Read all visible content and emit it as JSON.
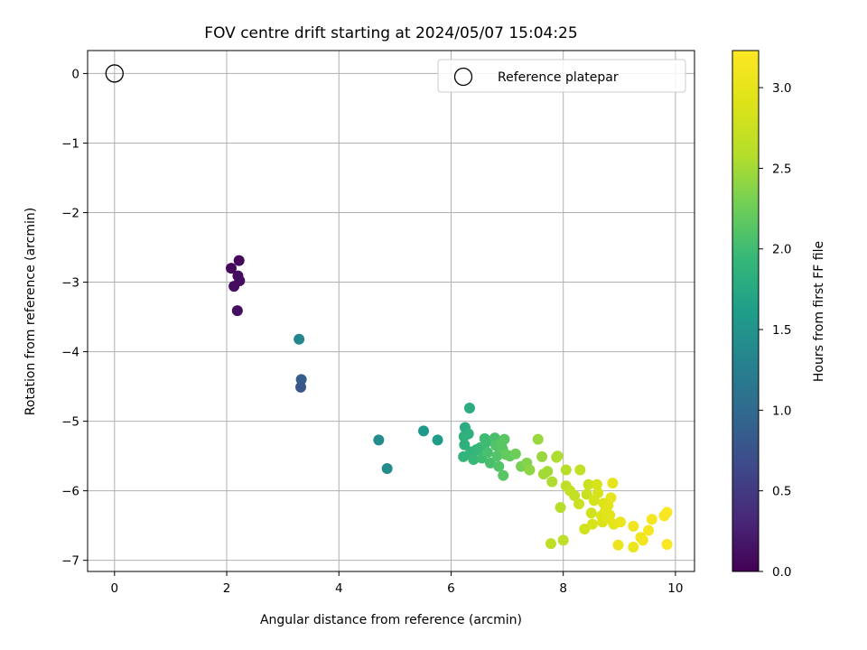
{
  "chart_data": {
    "type": "scatter",
    "title": "FOV centre drift starting at 2024/05/07 15:04:25",
    "xlabel": "Angular distance from reference (arcmin)",
    "ylabel": "Rotation from reference (arcmin)",
    "xlim": [
      -0.48,
      10.34
    ],
    "ylim": [
      -7.16,
      0.33
    ],
    "xticks": [
      0,
      2,
      4,
      6,
      8,
      10
    ],
    "yticks": [
      0,
      -1,
      -2,
      -3,
      -4,
      -5,
      -6,
      -7
    ],
    "xtick_labels": [
      "0",
      "2",
      "4",
      "6",
      "8",
      "10"
    ],
    "ytick_labels": [
      "0",
      "−1",
      "−2",
      "−3",
      "−4",
      "−5",
      "−6",
      "−7"
    ],
    "grid": true,
    "legend": {
      "placement": "top-right",
      "entries": [
        "Reference platepar"
      ]
    },
    "colorbar": {
      "label": "Hours from first FF file",
      "colormap": "viridis",
      "range": [
        0.0,
        3.23
      ],
      "ticks": [
        0.0,
        0.5,
        1.0,
        1.5,
        2.0,
        2.5,
        3.0
      ],
      "tick_labels": [
        "0.0",
        "0.5",
        "1.0",
        "1.5",
        "2.0",
        "2.5",
        "3.0"
      ]
    },
    "reference_point": {
      "name": "Reference platepar",
      "x": 0,
      "y": 0,
      "marker": "open-circle"
    },
    "series": [
      {
        "points": [
          [
            2.22,
            -2.69,
            0.05
          ],
          [
            2.08,
            -2.8,
            0.05
          ],
          [
            2.2,
            -2.91,
            0.08
          ],
          [
            2.23,
            -2.98,
            0.1
          ],
          [
            2.13,
            -3.06,
            0.1
          ],
          [
            2.19,
            -3.41,
            0.12
          ],
          [
            3.29,
            -3.82,
            1.35
          ],
          [
            3.33,
            -4.4,
            0.85
          ],
          [
            3.32,
            -4.51,
            0.8
          ],
          [
            4.71,
            -5.27,
            1.4
          ],
          [
            4.86,
            -5.68,
            1.4
          ],
          [
            5.51,
            -5.14,
            1.55
          ],
          [
            5.76,
            -5.27,
            1.6
          ],
          [
            6.33,
            -4.81,
            1.8
          ],
          [
            6.25,
            -5.09,
            1.8
          ],
          [
            6.31,
            -5.18,
            1.85
          ],
          [
            6.23,
            -5.22,
            1.85
          ],
          [
            6.24,
            -5.34,
            1.85
          ],
          [
            6.22,
            -5.51,
            1.9
          ],
          [
            6.35,
            -5.44,
            1.9
          ],
          [
            6.45,
            -5.41,
            1.9
          ],
          [
            6.52,
            -5.38,
            1.95
          ],
          [
            6.4,
            -5.55,
            1.95
          ],
          [
            6.55,
            -5.53,
            2.0
          ],
          [
            6.6,
            -5.25,
            2.0
          ],
          [
            6.62,
            -5.31,
            2.0
          ],
          [
            6.65,
            -5.45,
            2.05
          ],
          [
            6.7,
            -5.6,
            2.05
          ],
          [
            6.78,
            -5.24,
            2.05
          ],
          [
            6.8,
            -5.35,
            2.1
          ],
          [
            6.82,
            -5.5,
            2.1
          ],
          [
            6.85,
            -5.65,
            2.1
          ],
          [
            6.9,
            -5.31,
            2.15
          ],
          [
            6.92,
            -5.4,
            2.15
          ],
          [
            6.95,
            -5.26,
            2.15
          ],
          [
            6.93,
            -5.78,
            2.15
          ],
          [
            6.98,
            -5.48,
            2.2
          ],
          [
            7.05,
            -5.5,
            2.2
          ],
          [
            7.15,
            -5.47,
            2.25
          ],
          [
            7.25,
            -5.65,
            2.3
          ],
          [
            7.35,
            -5.6,
            2.35
          ],
          [
            7.4,
            -5.7,
            2.4
          ],
          [
            7.55,
            -5.26,
            2.45
          ],
          [
            7.62,
            -5.51,
            2.45
          ],
          [
            7.65,
            -5.76,
            2.5
          ],
          [
            7.72,
            -5.72,
            2.5
          ],
          [
            7.8,
            -5.87,
            2.55
          ],
          [
            7.88,
            -5.52,
            2.55
          ],
          [
            7.9,
            -5.5,
            2.55
          ],
          [
            7.78,
            -6.76,
            2.65
          ],
          [
            7.95,
            -6.24,
            2.6
          ],
          [
            8.0,
            -6.71,
            2.65
          ],
          [
            8.05,
            -5.7,
            2.6
          ],
          [
            8.05,
            -5.93,
            2.65
          ],
          [
            8.12,
            -6.0,
            2.7
          ],
          [
            8.2,
            -6.07,
            2.7
          ],
          [
            8.28,
            -6.19,
            2.75
          ],
          [
            8.3,
            -5.7,
            2.7
          ],
          [
            8.38,
            -6.55,
            2.8
          ],
          [
            8.42,
            -6.05,
            2.75
          ],
          [
            8.45,
            -5.91,
            2.75
          ],
          [
            8.5,
            -6.32,
            2.8
          ],
          [
            8.52,
            -6.48,
            2.85
          ],
          [
            8.55,
            -6.14,
            2.85
          ],
          [
            8.6,
            -5.91,
            2.85
          ],
          [
            8.62,
            -6.03,
            2.85
          ],
          [
            8.68,
            -6.36,
            2.9
          ],
          [
            8.7,
            -6.45,
            2.9
          ],
          [
            8.72,
            -6.18,
            2.9
          ],
          [
            8.75,
            -6.29,
            2.95
          ],
          [
            8.78,
            -6.4,
            2.95
          ],
          [
            8.8,
            -6.21,
            2.95
          ],
          [
            8.83,
            -6.35,
            2.95
          ],
          [
            8.85,
            -6.1,
            3.0
          ],
          [
            8.88,
            -5.89,
            3.0
          ],
          [
            8.9,
            -6.48,
            3.0
          ],
          [
            8.98,
            -6.78,
            3.05
          ],
          [
            9.02,
            -6.45,
            3.05
          ],
          [
            9.25,
            -6.81,
            3.05
          ],
          [
            9.25,
            -6.51,
            3.1
          ],
          [
            9.38,
            -6.67,
            3.1
          ],
          [
            9.42,
            -6.71,
            3.12
          ],
          [
            9.52,
            -6.57,
            3.15
          ],
          [
            9.58,
            -6.41,
            3.15
          ],
          [
            9.8,
            -6.36,
            3.18
          ],
          [
            9.85,
            -6.31,
            3.2
          ],
          [
            9.85,
            -6.77,
            3.2
          ]
        ]
      }
    ]
  }
}
